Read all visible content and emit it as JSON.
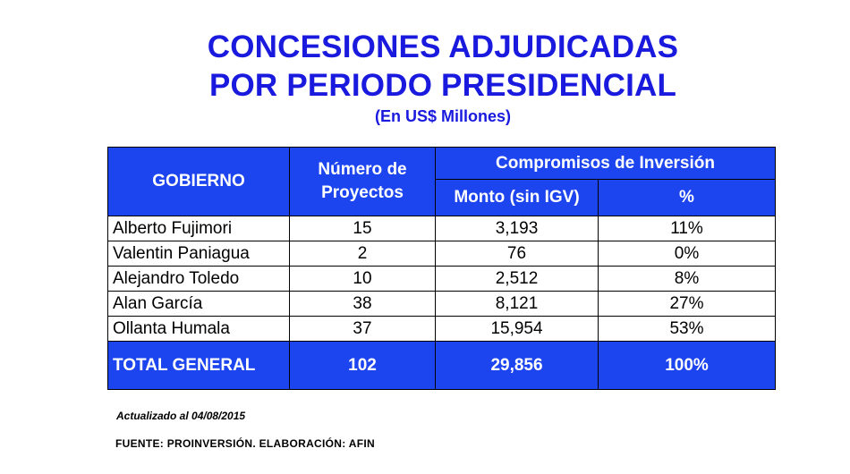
{
  "title_line1": "CONCESIONES ADJUDICADAS",
  "title_line2": "POR PERIODO PRESIDENCIAL",
  "subtitle": "(En US$ Millones)",
  "table": {
    "headers": {
      "gobierno": "GOBIERNO",
      "numero_line1": "Número de",
      "numero_line2": "Proyectos",
      "compromisos": "Compromisos de Inversión",
      "monto": "Monto (sin IGV)",
      "pct": "%"
    },
    "rows": [
      {
        "gobierno": "Alberto Fujimori",
        "proyectos": "15",
        "monto": "3,193",
        "pct": "11%"
      },
      {
        "gobierno": "Valentin Paniagua",
        "proyectos": "2",
        "monto": "76",
        "pct": "0%"
      },
      {
        "gobierno": "Alejandro Toledo",
        "proyectos": "10",
        "monto": "2,512",
        "pct": "8%"
      },
      {
        "gobierno": "Alan García",
        "proyectos": "38",
        "monto": "8,121",
        "pct": "27%"
      },
      {
        "gobierno": "Ollanta Humala",
        "proyectos": "37",
        "monto": "15,954",
        "pct": "53%"
      }
    ],
    "total": {
      "gobierno": "TOTAL GENERAL",
      "proyectos": "102",
      "monto": "29,856",
      "pct": "100%"
    }
  },
  "note": "Actualizado al 04/08/2015",
  "source": "FUENTE: PROINVERSIÓN. ELABORACIÓN: AFIN",
  "colors": {
    "title": "#1a1adf",
    "header_bg": "#1d45ef"
  }
}
